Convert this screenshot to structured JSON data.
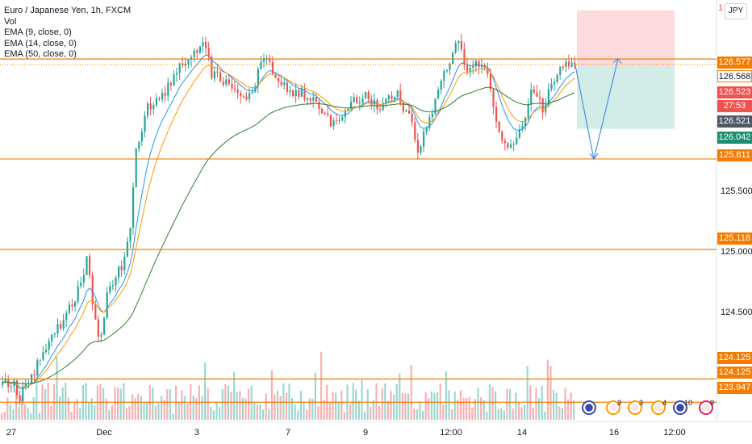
{
  "legend": {
    "title": "Euro / Japanese Yen, 1h, FXCM",
    "vol": "Vol",
    "ema9": "EMA (9, close, 0)",
    "ema14": "EMA (14, close, 0)",
    "ema50": "EMA (50, close, 0)"
  },
  "currency_button": "JPY",
  "price_axis": {
    "tags": [
      {
        "label": "126.577",
        "color": "#f57c00"
      },
      {
        "label": "126.568",
        "color": "#ffffff",
        "text_color": "#131722"
      },
      {
        "label": "126.523",
        "color": "#ef5350"
      },
      {
        "label": "27:53",
        "color": "#ef5350"
      },
      {
        "label": "126.521",
        "color": "#4f5966"
      },
      {
        "label": "126.042",
        "color": "#1b8f6f"
      },
      {
        "label": "125.811",
        "color": "#f57c00"
      },
      {
        "label": "125.118",
        "color": "#f57c00"
      },
      {
        "label": "124.125",
        "color": "#f57c00"
      },
      {
        "label": "124.125",
        "color": "#f57c00"
      },
      {
        "label": "123.947",
        "color": "#f57c00"
      }
    ],
    "ticks": [
      "125.500",
      "125.000",
      "124.500"
    ],
    "top_partial": "1"
  },
  "time_axis": [
    "27",
    "Dec",
    "3",
    "7",
    "9",
    "12:00",
    "14",
    "16",
    "12:00"
  ],
  "events": [
    {
      "count": ""
    },
    {
      "count": "3"
    },
    {
      "count": "3"
    },
    {
      "count": "4"
    },
    {
      "count": "10"
    },
    {
      "count": "9"
    }
  ],
  "chart_data": {
    "type": "candlestick",
    "symbol": "Euro / Japanese Yen, 1h, FXCM",
    "ylim": [
      123.8,
      126.98
    ],
    "horizontal_levels": [
      126.577,
      125.811,
      125.118,
      124.125,
      123.947
    ],
    "series": [
      {
        "name": "EMA (9, close, 0)",
        "color": "#2196f3"
      },
      {
        "name": "EMA (14, close, 0)",
        "color": "#ff9800"
      },
      {
        "name": "EMA (50, close, 0)",
        "color": "#2e7d32"
      }
    ],
    "position": {
      "type": "short",
      "entry": 126.521,
      "stop": 126.95,
      "target": 126.042,
      "projection": [
        126.56,
        125.81,
        126.58
      ]
    },
    "anchors": [
      [
        0,
        124.08
      ],
      [
        15,
        124.1
      ],
      [
        22,
        123.98
      ],
      [
        38,
        124.12
      ],
      [
        60,
        124.45
      ],
      [
        75,
        124.55
      ],
      [
        88,
        124.7
      ],
      [
        100,
        124.85
      ],
      [
        106,
        125.1
      ],
      [
        116,
        124.6
      ],
      [
        123,
        124.4
      ],
      [
        132,
        124.8
      ],
      [
        150,
        125.0
      ],
      [
        160,
        125.25
      ],
      [
        167,
        125.85
      ],
      [
        180,
        126.2
      ],
      [
        200,
        126.3
      ],
      [
        220,
        126.5
      ],
      [
        240,
        126.62
      ],
      [
        252,
        126.68
      ],
      [
        262,
        126.45
      ],
      [
        278,
        126.4
      ],
      [
        290,
        126.3
      ],
      [
        310,
        126.28
      ],
      [
        325,
        126.62
      ],
      [
        340,
        126.47
      ],
      [
        355,
        126.35
      ],
      [
        375,
        126.3
      ],
      [
        390,
        126.28
      ],
      [
        410,
        126.05
      ],
      [
        430,
        126.22
      ],
      [
        450,
        126.3
      ],
      [
        470,
        126.2
      ],
      [
        490,
        126.32
      ],
      [
        508,
        126.1
      ],
      [
        518,
        125.85
      ],
      [
        530,
        126.1
      ],
      [
        545,
        126.4
      ],
      [
        556,
        126.55
      ],
      [
        566,
        126.78
      ],
      [
        576,
        126.5
      ],
      [
        590,
        126.55
      ],
      [
        605,
        126.42
      ],
      [
        615,
        126.08
      ],
      [
        628,
        125.85
      ],
      [
        645,
        126.08
      ],
      [
        660,
        126.35
      ],
      [
        672,
        126.2
      ],
      [
        684,
        126.42
      ],
      [
        694,
        126.5
      ],
      [
        708,
        126.55
      ],
      [
        712,
        126.52
      ]
    ]
  }
}
